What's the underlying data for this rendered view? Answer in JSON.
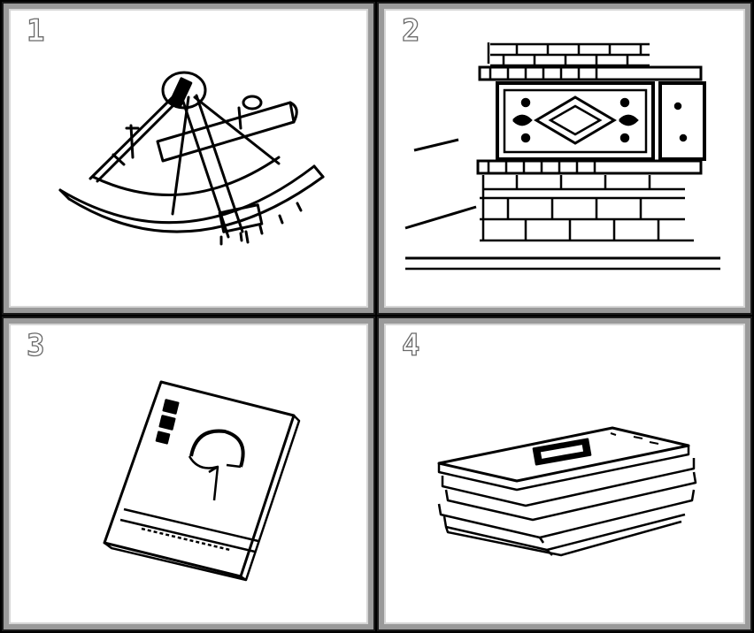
{
  "panels": [
    {
      "number": "1",
      "depicts": "sextant-icon"
    },
    {
      "number": "2",
      "depicts": "carved-plinth-icon"
    },
    {
      "number": "3",
      "depicts": "book-icon"
    },
    {
      "number": "4",
      "depicts": "stack-of-books-icon"
    }
  ],
  "colors": {
    "background": "#000000",
    "panel": "#ffffff",
    "frame": "#9a9a9a",
    "ink": "#000000"
  }
}
